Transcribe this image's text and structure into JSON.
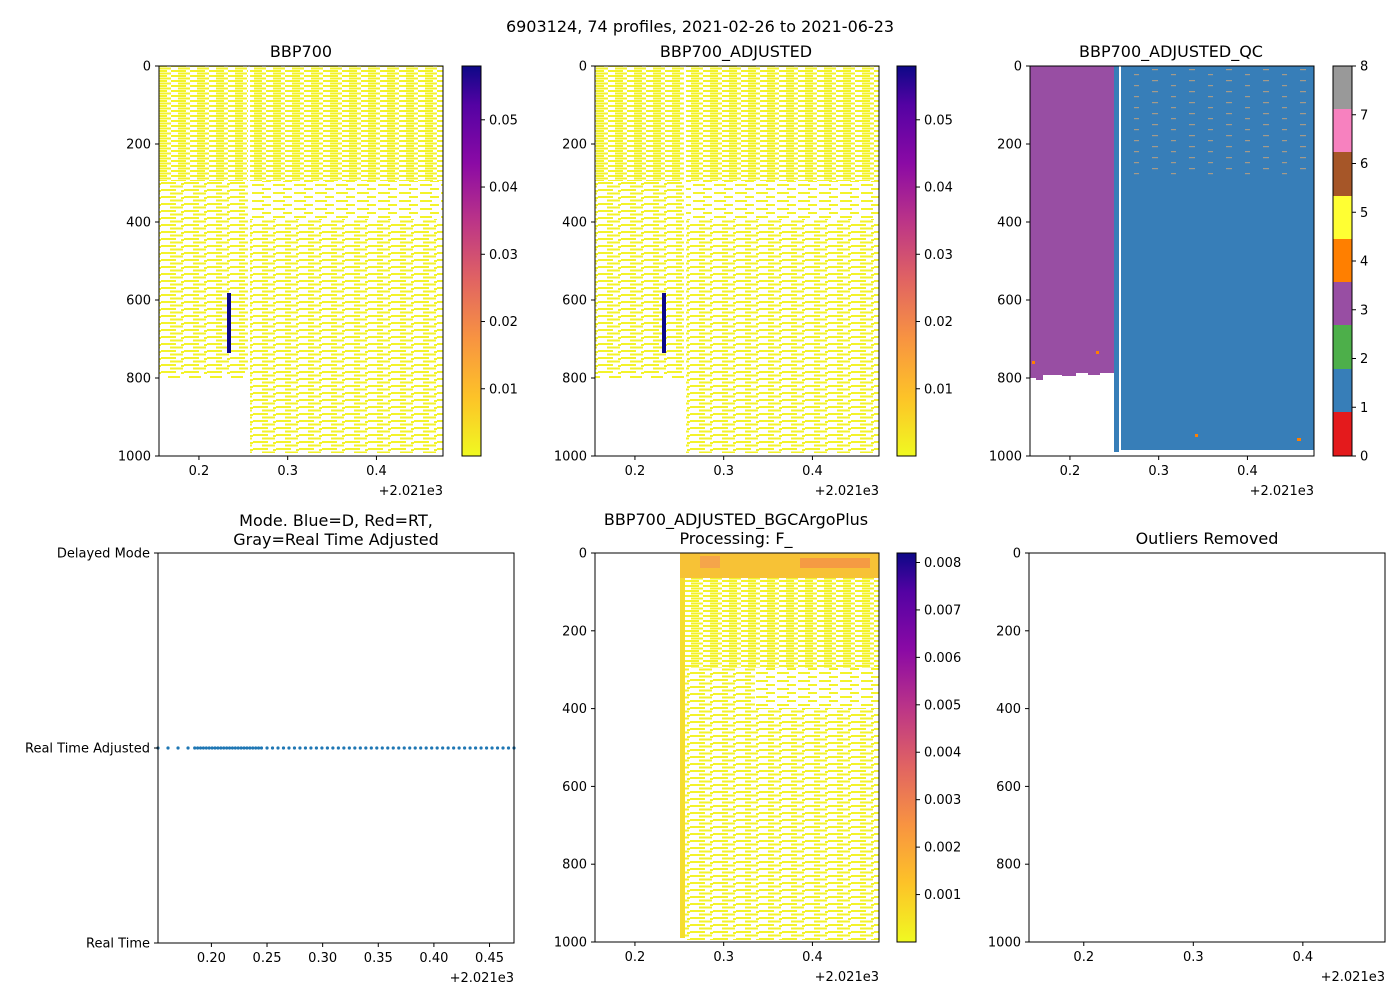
{
  "suptitle": "6903124, 74 profiles, 2021-02-26 to 2021-06-23",
  "x_offset_label": "+2.021e3",
  "depth_ticks": [
    "0",
    "200",
    "400",
    "600",
    "800",
    "1000"
  ],
  "colors": {
    "bbp_low": "#f3f32a",
    "bbp_spike": "#0d0887",
    "qc_1": "#377eb8",
    "qc_3": "#984ea3",
    "qc_4": "#ff7f00",
    "mode_dot": "#1f77b4"
  },
  "chart_data": [
    {
      "id": "bbp700",
      "type": "heatmap",
      "title": "BBP700",
      "xlim": [
        0.155,
        0.475
      ],
      "x_ticks": [
        "0.2",
        "0.3",
        "0.4"
      ],
      "ylim": [
        1000,
        0
      ],
      "colorbar": {
        "cmap": "plasma_r",
        "range": [
          0.0,
          0.058
        ],
        "ticks": [
          "0.01",
          "0.02",
          "0.03",
          "0.04",
          "0.05"
        ]
      },
      "notes": "mostly low values (~0.001) to ~1000 dbar; one profile near 0.232 shows spike ~0.058 between 590-745 dbar"
    },
    {
      "id": "bbp700_adjusted",
      "type": "heatmap",
      "title": "BBP700_ADJUSTED",
      "xlim": [
        0.155,
        0.475
      ],
      "x_ticks": [
        "0.2",
        "0.3",
        "0.4"
      ],
      "ylim": [
        1000,
        0
      ],
      "colorbar": {
        "cmap": "plasma_r",
        "range": [
          0.0,
          0.058
        ],
        "ticks": [
          "0.01",
          "0.02",
          "0.03",
          "0.04",
          "0.05"
        ]
      }
    },
    {
      "id": "bbp700_adjusted_qc",
      "type": "heatmap",
      "title": "BBP700_ADJUSTED_QC",
      "xlim": [
        0.155,
        0.475
      ],
      "x_ticks": [
        "0.2",
        "0.3",
        "0.4"
      ],
      "ylim": [
        1000,
        0
      ],
      "colorbar": {
        "cmap": "Set1",
        "range": [
          0,
          8
        ],
        "ticks": [
          "0",
          "1",
          "2",
          "3",
          "4",
          "5",
          "6",
          "7",
          "8"
        ]
      },
      "segments": [
        {
          "x_start": 0.155,
          "x_end": 0.25,
          "qc": 3,
          "max_depth": 800
        },
        {
          "x_start": 0.25,
          "x_end": 0.475,
          "qc": 1,
          "max_depth": 990
        }
      ]
    },
    {
      "id": "mode",
      "type": "scatter",
      "title_line1": "Mode. Blue=D, Red=RT,",
      "title_line2": "Gray=Real Time Adjusted",
      "xlim": [
        0.152,
        0.472
      ],
      "x_ticks": [
        "0.20",
        "0.25",
        "0.30",
        "0.35",
        "0.40",
        "0.45"
      ],
      "y_categories": [
        "Real Time",
        "Real Time Adjusted",
        "Delayed Mode"
      ],
      "points_mode": "Real Time Adjusted",
      "point_count": 74
    },
    {
      "id": "bgcargoplus",
      "type": "heatmap",
      "title_line1": "BBP700_ADJUSTED_BGCArgoPlus",
      "title_line2": "Processing: F_",
      "xlim": [
        0.155,
        0.475
      ],
      "x_ticks": [
        "0.2",
        "0.3",
        "0.4"
      ],
      "ylim": [
        1000,
        0
      ],
      "data_x_start": 0.25,
      "colorbar": {
        "cmap": "plasma_r",
        "range": [
          0.0,
          0.0082
        ],
        "ticks": [
          "0.001",
          "0.002",
          "0.003",
          "0.004",
          "0.005",
          "0.006",
          "0.007",
          "0.008"
        ]
      }
    },
    {
      "id": "outliers",
      "type": "heatmap",
      "title": "Outliers Removed",
      "xlim": [
        0.15,
        0.475
      ],
      "x_ticks": [
        "0.2",
        "0.3",
        "0.4"
      ],
      "ylim": [
        1000,
        0
      ],
      "empty": true
    }
  ]
}
